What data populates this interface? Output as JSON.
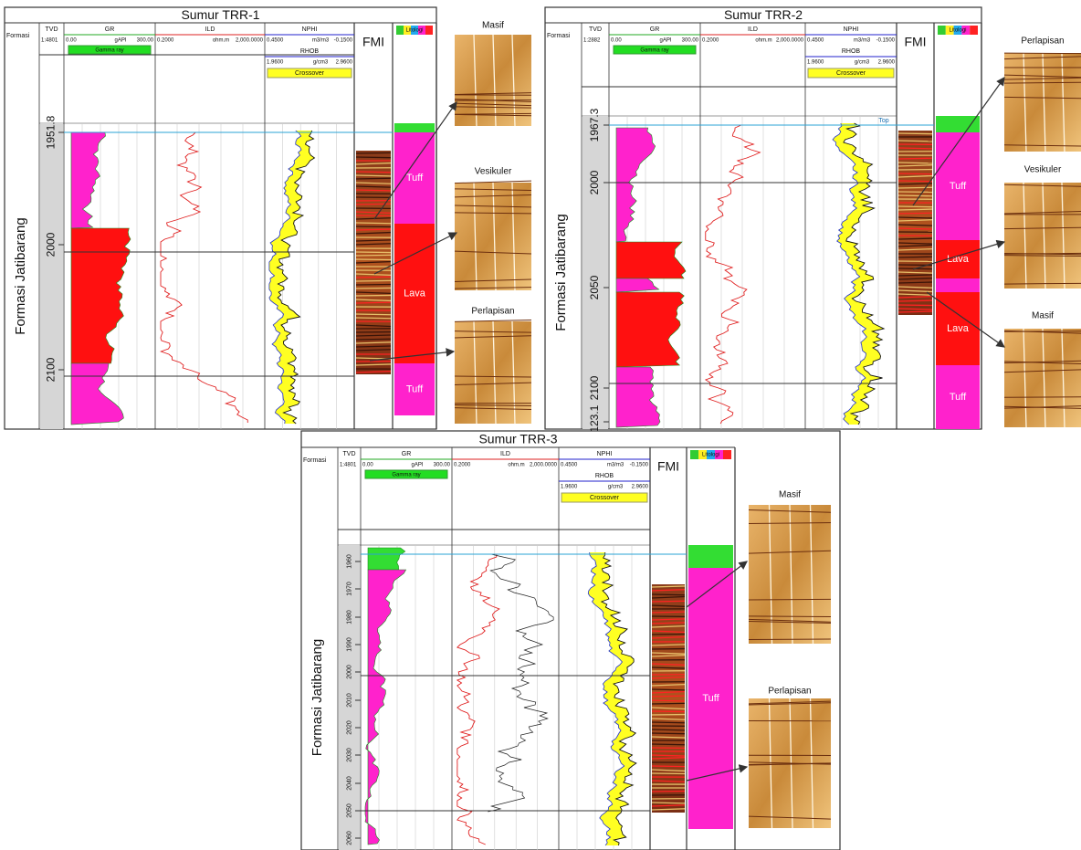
{
  "panels": [
    {
      "title": "Sumur TRR-1",
      "formasi": "Formasi",
      "tvd": {
        "name": "TVD",
        "scale": "1:4801"
      },
      "gr": {
        "name": "GR",
        "min": "0.00",
        "unit": "gAPI",
        "max": "300.00",
        "legend": "Gamma ray"
      },
      "ild": {
        "name": "ILD",
        "min": "0.2000",
        "unit": "ohm.m",
        "max": "2,000.0000"
      },
      "nphi": {
        "name": "NPHI",
        "min": "0.4500",
        "unit": "m3/m3",
        "max": "-0.1500"
      },
      "rhob": {
        "name": "RHOB",
        "min": "1.9600",
        "unit": "g/cm3",
        "max": "2.9600"
      },
      "crossover": "Crossover",
      "fmi": "FMI",
      "litologi": "Litologi",
      "formation": "Formasi Jatibarang",
      "depth_ticks": [
        1951.8,
        2000,
        2100
      ],
      "lithology": [
        "Tuff",
        "Lava",
        "Tuff"
      ],
      "images": [
        "Masif",
        "Vesikuler",
        "Perlapisan"
      ]
    },
    {
      "title": "Sumur TRR-2",
      "formasi": "Formasi",
      "tvd": {
        "name": "TVD",
        "scale": "1:2882"
      },
      "gr": {
        "name": "GR",
        "min": "0.00",
        "unit": "gAPI",
        "max": "300.00",
        "legend": "Gamma ray"
      },
      "ild": {
        "name": "ILD",
        "min": "0.2000",
        "unit": "ohm.m",
        "max": "2,000.0000"
      },
      "nphi": {
        "name": "NPHI",
        "min": "0.4500",
        "unit": "m3/m3",
        "max": "-0.1500"
      },
      "rhob": {
        "name": "RHOB",
        "min": "1.9600",
        "unit": "g/cm3",
        "max": "2.9600"
      },
      "crossover": "Crossover",
      "fmi": "FMI",
      "litologi": "Litologi",
      "formation": "Formasi Jatibarang",
      "top_marker": "Top",
      "depth_ticks": [
        1967.3,
        2000,
        2050,
        2100,
        2123.1
      ],
      "lithology": [
        "Tuff",
        "Lava",
        "Lava",
        "Tuff"
      ],
      "images": [
        "Perlapisan",
        "Vesikuler",
        "Masif"
      ]
    },
    {
      "title": "Sumur TRR-3",
      "formasi": "Formasi",
      "tvd": {
        "name": "TVD",
        "scale": "1:4801"
      },
      "gr": {
        "name": "GR",
        "min": "0.00",
        "unit": "gAPI",
        "max": "300.00",
        "legend": "Gamma ray"
      },
      "ild": {
        "name": "ILD",
        "min": "0.2000",
        "unit": "ohm.m",
        "max": "2,000.0000"
      },
      "nphi": {
        "name": "NPHI",
        "min": "0.4500",
        "unit": "m3/m3",
        "max": "-0.1500"
      },
      "rhob": {
        "name": "RHOB",
        "min": "1.9600",
        "unit": "g/cm3",
        "max": "2.9600"
      },
      "crossover": "Crossover",
      "fmi": "FMI",
      "litologi": "Litologi",
      "formation": "Formasi Jatibarang",
      "depth_ticks": [
        1960,
        1970,
        1980,
        1990,
        2000,
        2010,
        2020,
        2030,
        2040,
        2050,
        2060
      ],
      "lithology": [
        "Tuff"
      ],
      "images": [
        "Masif",
        "Perlapisan"
      ]
    }
  ]
}
